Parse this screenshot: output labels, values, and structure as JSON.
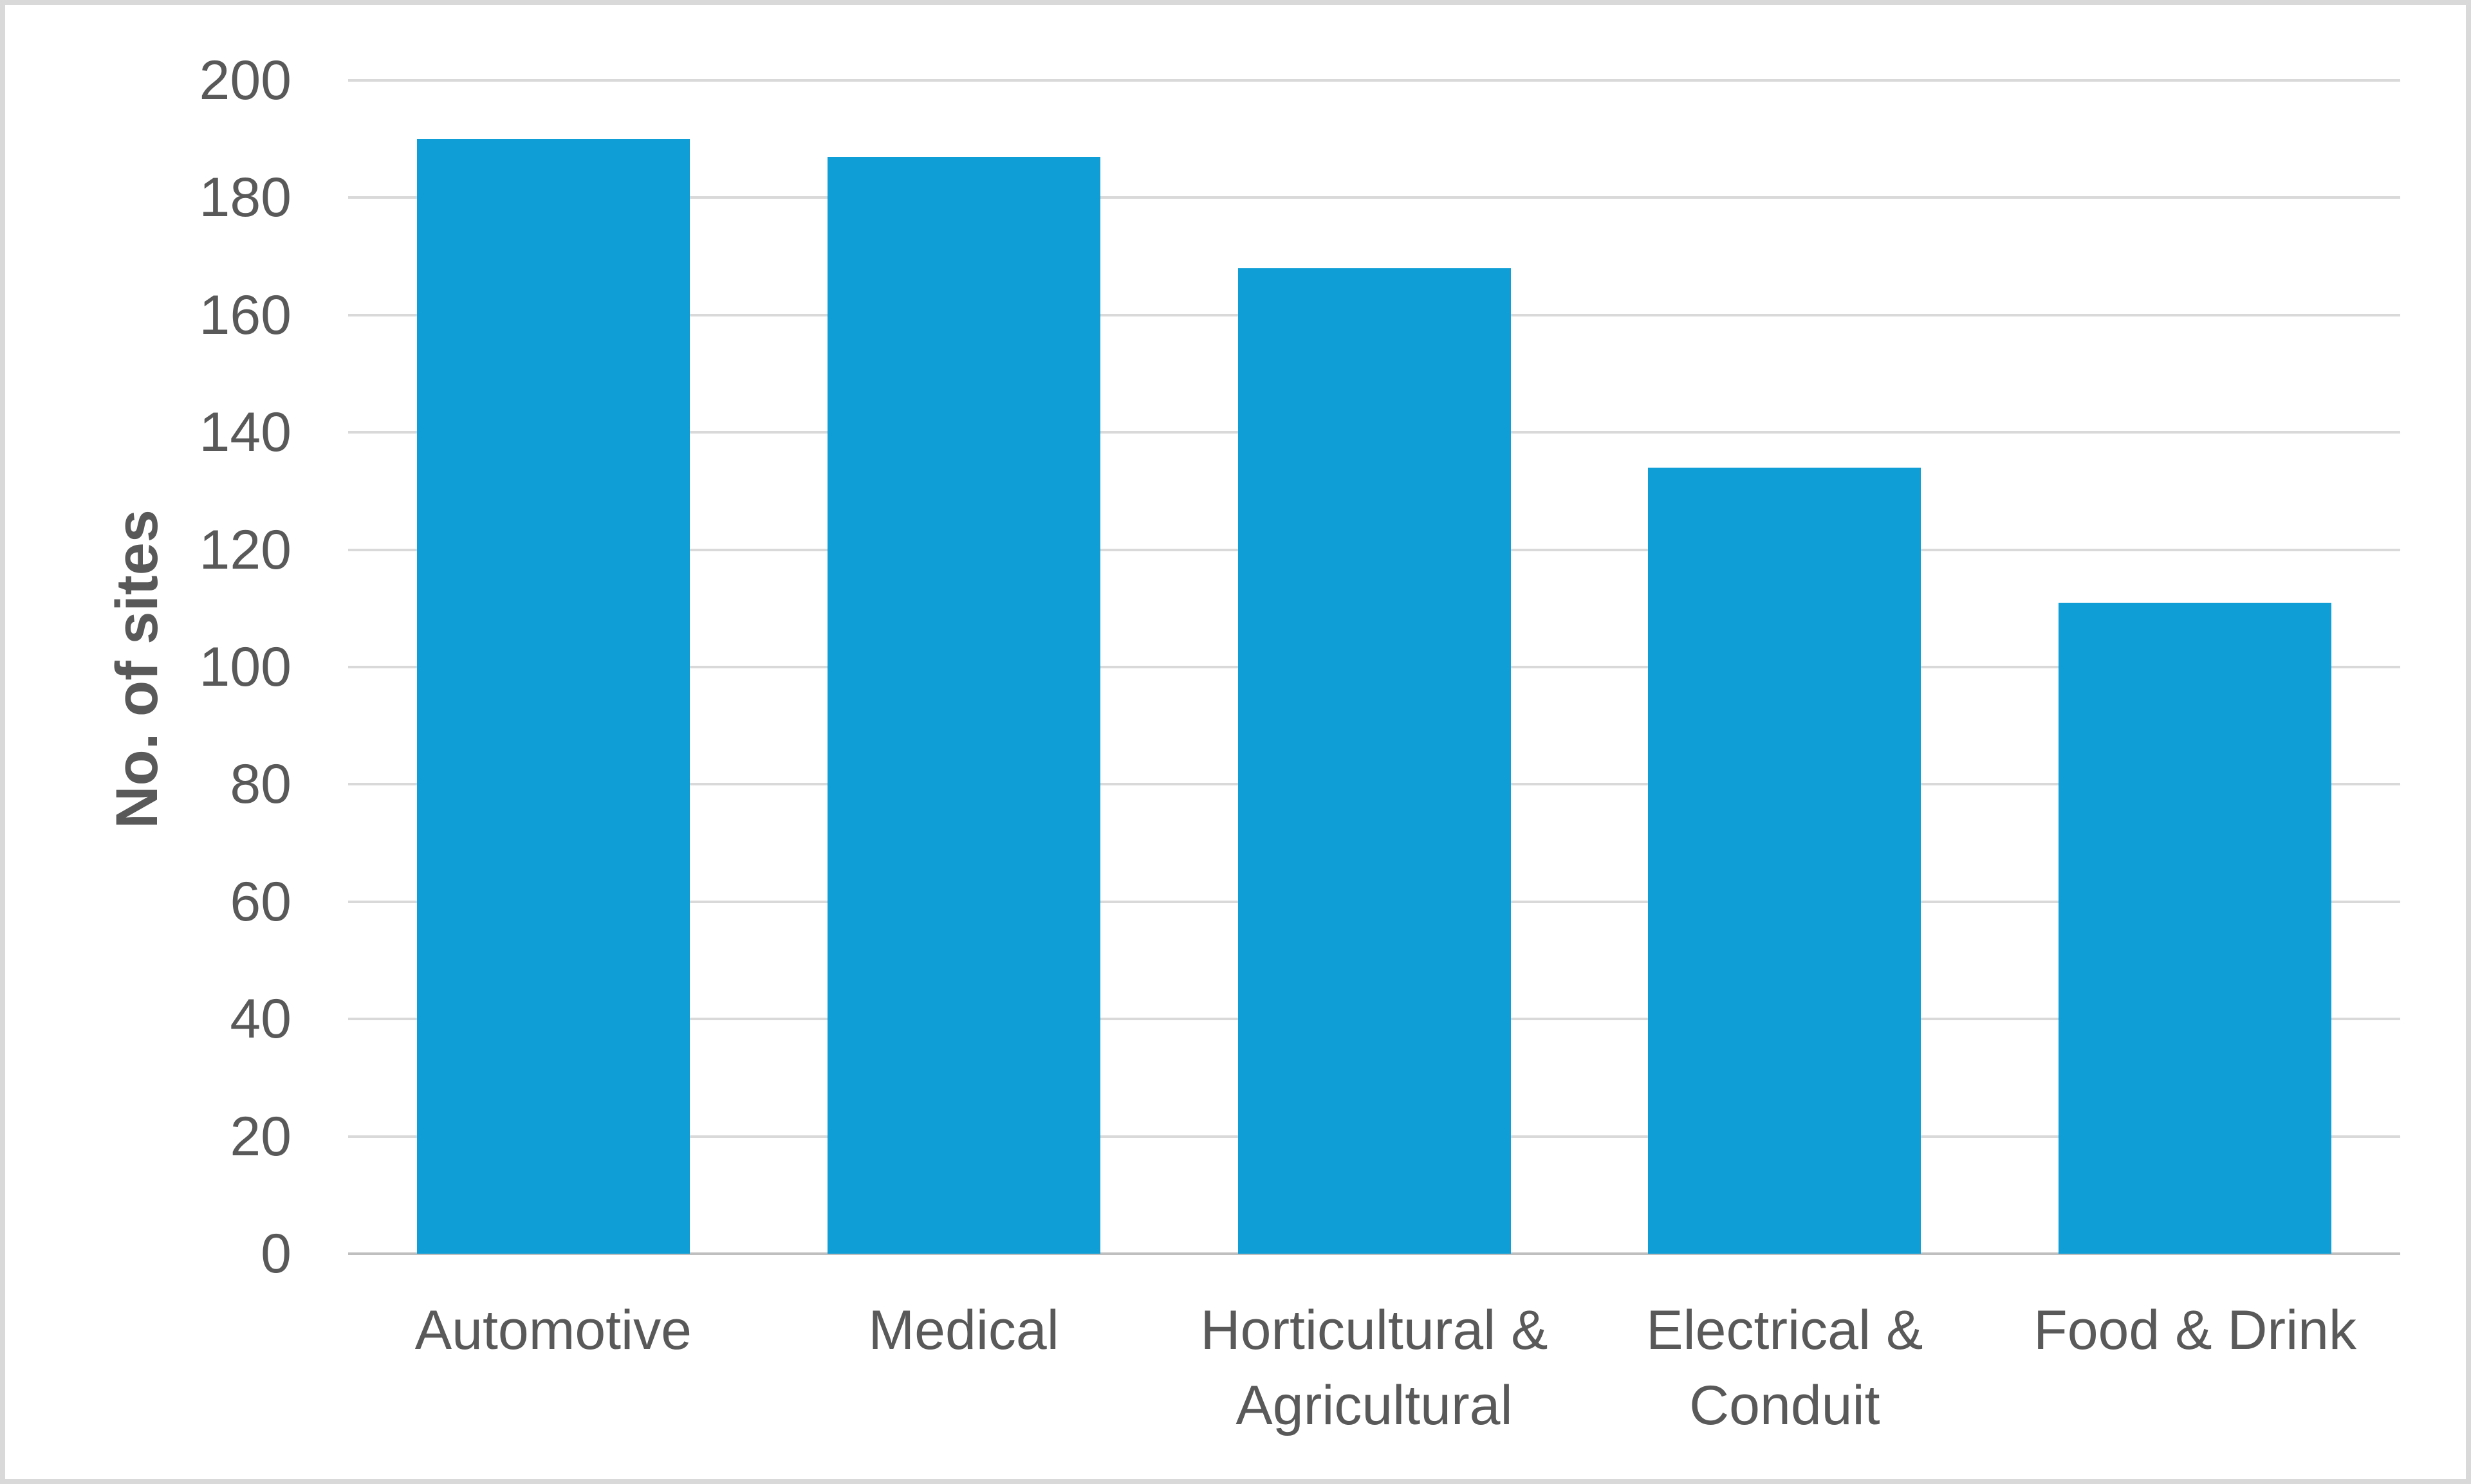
{
  "chart_data": {
    "type": "bar",
    "title": "",
    "categories": [
      "Automotive",
      "Medical",
      "Horticultural & Agricultural",
      "Electrical & Conduit",
      "Food & Drink"
    ],
    "category_display_lines": [
      [
        "Automotive"
      ],
      [
        "Medical"
      ],
      [
        "Horticultural &",
        "Agricultural"
      ],
      [
        "Electrical &",
        "Conduit"
      ],
      [
        "Food & Drink"
      ]
    ],
    "values": [
      190,
      187,
      168,
      134,
      111
    ],
    "xlabel": "",
    "ylabel": "No. of sites",
    "ylim": [
      0,
      200
    ],
    "ytick_step": 20,
    "yticks": [
      0,
      20,
      40,
      60,
      80,
      100,
      120,
      140,
      160,
      180,
      200
    ],
    "grid": true,
    "legend": false
  },
  "colors": {
    "bar": "#0F9ED5",
    "gridline": "#D9D9D9",
    "axis_line": "#BFBFBF",
    "text": "#595959",
    "frame_border": "#D9D9D9",
    "background": "#FFFFFF"
  }
}
